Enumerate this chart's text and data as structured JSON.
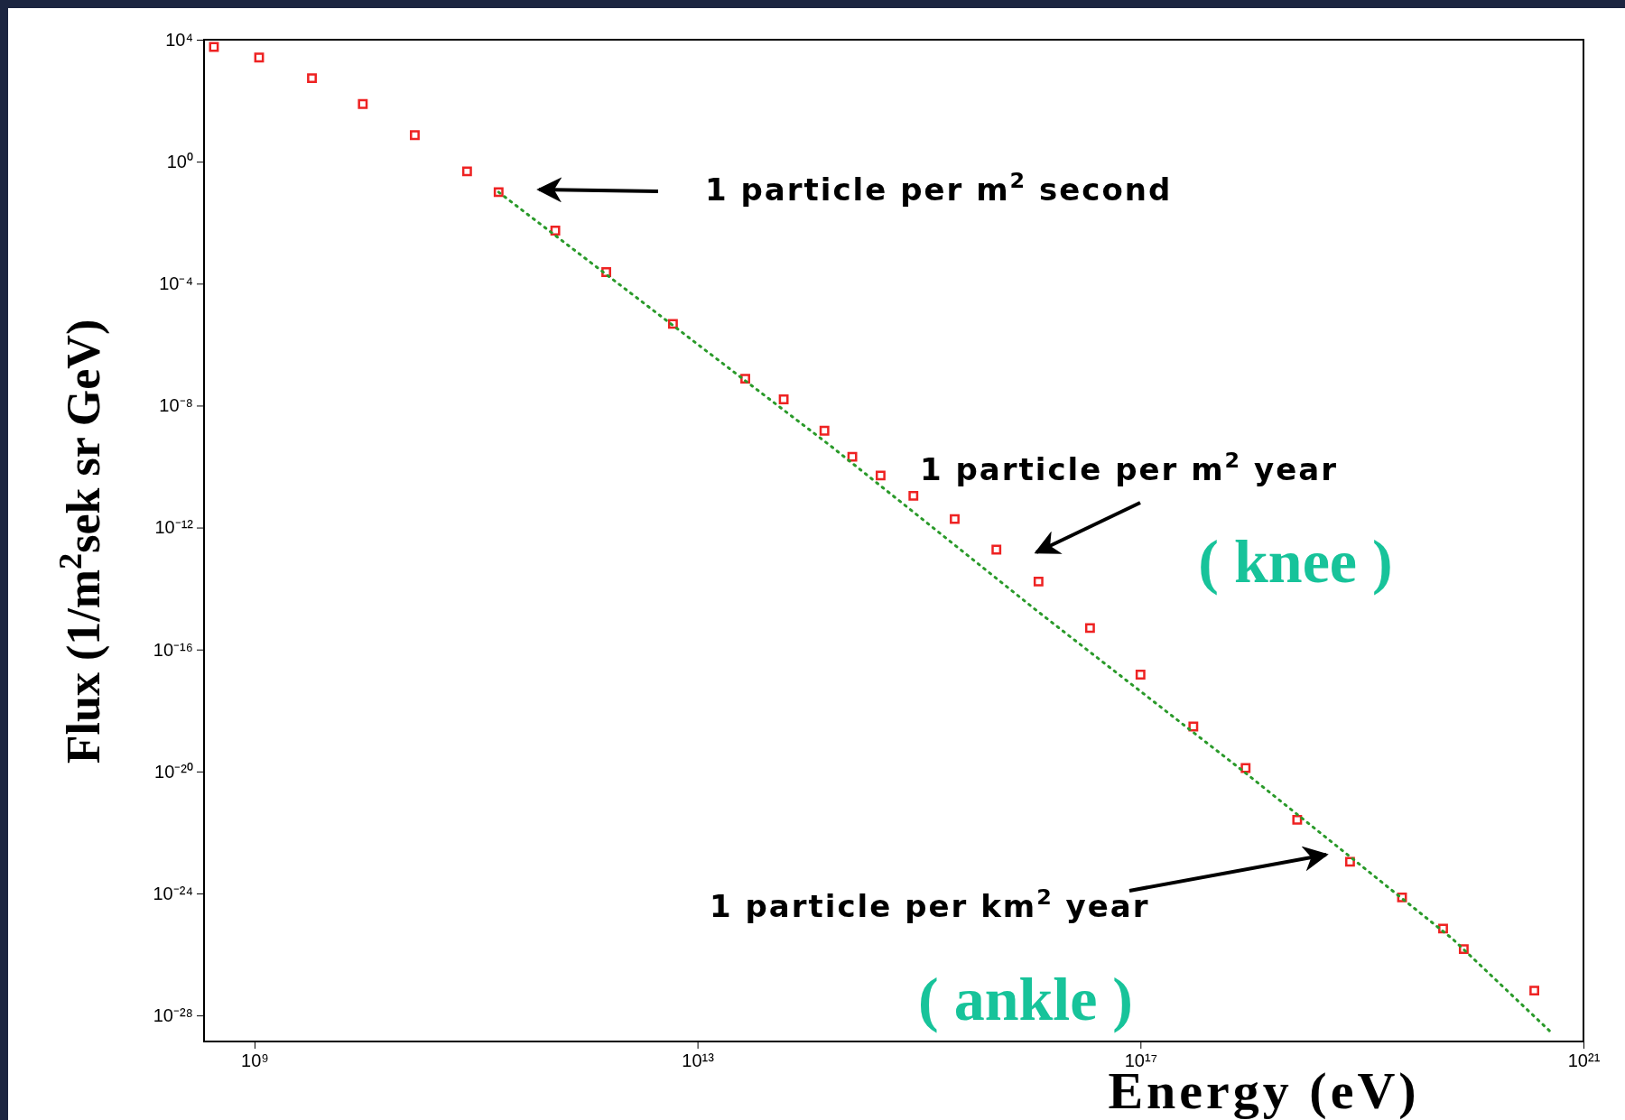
{
  "chart_data": {
    "type": "scatter",
    "xlabel": "Energy  (eV)",
    "ylabel": "Flux  (1/m$^{2}$sek sr GeV)",
    "log": "xy",
    "xlim": [
      350000000.0,
      1e+21
    ],
    "ylim": [
      1.4e-29,
      10000.0
    ],
    "xticks": [
      {
        "value": 1000000000.0,
        "label": "10⁹"
      },
      {
        "value": 10000000000000.0,
        "label": "10¹³"
      },
      {
        "value": 1e+17,
        "label": "10¹⁷"
      },
      {
        "value": 1e+21,
        "label": "10²¹"
      }
    ],
    "yticks": [
      {
        "value": 10000.0,
        "label": "10⁴"
      },
      {
        "value": 1.0,
        "label": "10⁰"
      },
      {
        "value": 0.0001,
        "label": "10⁻⁴"
      },
      {
        "value": 1e-08,
        "label": "10⁻⁸"
      },
      {
        "value": 1e-12,
        "label": "10⁻¹²"
      },
      {
        "value": 1e-16,
        "label": "10⁻¹⁶"
      },
      {
        "value": 1e-20,
        "label": "10⁻²⁰"
      },
      {
        "value": 1e-24,
        "label": "10⁻²⁴"
      },
      {
        "value": 1e-28,
        "label": "10⁻²⁸"
      }
    ],
    "series": [
      {
        "marker": "square",
        "color": "#ee2222",
        "x": [
          430000000.0,
          1100000000.0,
          3300000000.0,
          9500000000.0,
          28000000000.0,
          83000000000.0,
          160000000000.0,
          520000000000.0,
          1500000000000.0,
          6000000000000.0,
          27000000000000.0,
          60000000000000.0,
          140000000000000.0,
          250000000000000.0,
          450000000000000.0,
          890000000000000.0,
          2100000000000000.0,
          5000000000000000.0,
          1.2e+16,
          3.5e+16,
          1e+17,
          3e+17,
          8.9e+17,
          2.6e+18,
          7.8e+18,
          2.3e+19,
          5.4e+19,
          8.3e+19,
          3.6e+20
        ],
        "values": [
          5800.0,
          2600.0,
          550.0,
          78,
          7.4,
          0.48,
          0.1,
          0.0055,
          0.00024,
          4.8e-06,
          7.6e-08,
          1.6e-08,
          1.5e-09,
          2.1e-10,
          5.1e-11,
          1.1e-11,
          1.9e-12,
          1.9e-13,
          1.7e-14,
          5.1e-16,
          1.5e-17,
          3e-19,
          1.3e-20,
          2.6e-22,
          1.1e-23,
          7.4e-25,
          7.1e-26,
          1.5e-26,
          6.5e-28
        ]
      },
      {
        "type": "line",
        "line_style": "dotted",
        "color": "#2a9a2a",
        "x": [
          160000000000.0,
          160000000000000.0,
          1.2e+16,
          8.9e+17,
          6.6e+19,
          5.1e+20
        ],
        "values": [
          0.1,
          4.7e-10,
          1.7e-15,
          8.9e-21,
          3.2e-26,
          2.8e-29
        ]
      }
    ],
    "annotations": [
      "1 particle per m$^{2}$ second",
      "1 particle per m$^{2}$ year",
      "1 particle per km$^{2}$ year",
      "( knee )",
      "( ankle )"
    ]
  }
}
